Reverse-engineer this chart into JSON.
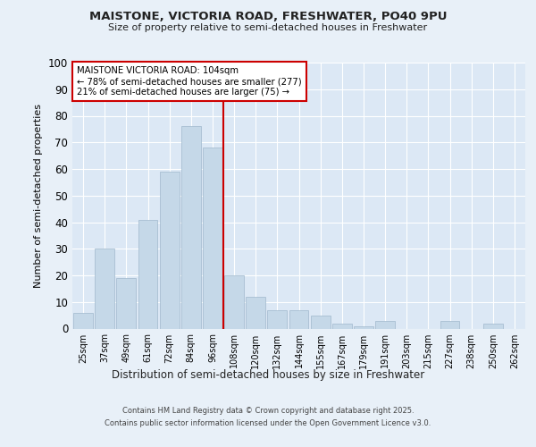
{
  "title1": "MAISTONE, VICTORIA ROAD, FRESHWATER, PO40 9PU",
  "title2": "Size of property relative to semi-detached houses in Freshwater",
  "xlabel": "Distribution of semi-detached houses by size in Freshwater",
  "ylabel": "Number of semi-detached properties",
  "categories": [
    "25sqm",
    "37sqm",
    "49sqm",
    "61sqm",
    "72sqm",
    "84sqm",
    "96sqm",
    "108sqm",
    "120sqm",
    "132sqm",
    "144sqm",
    "155sqm",
    "167sqm",
    "179sqm",
    "191sqm",
    "203sqm",
    "215sqm",
    "227sqm",
    "238sqm",
    "250sqm",
    "262sqm"
  ],
  "values": [
    6,
    30,
    19,
    41,
    59,
    76,
    68,
    20,
    12,
    7,
    7,
    5,
    2,
    1,
    3,
    0,
    0,
    3,
    0,
    2,
    0
  ],
  "bar_color": "#c5d8e8",
  "bar_edge_color": "#a0b8cc",
  "vline_x_index": 7,
  "vline_color": "#cc0000",
  "annotation_title": "MAISTONE VICTORIA ROAD: 104sqm",
  "annotation_line1": "← 78% of semi-detached houses are smaller (277)",
  "annotation_line2": "21% of semi-detached houses are larger (75) →",
  "annotation_box_color": "#ffffff",
  "annotation_box_edge": "#cc0000",
  "footer1": "Contains HM Land Registry data © Crown copyright and database right 2025.",
  "footer2": "Contains public sector information licensed under the Open Government Licence v3.0.",
  "background_color": "#e8f0f8",
  "plot_bg_color": "#dce8f5",
  "ylim": [
    0,
    100
  ],
  "yticks": [
    0,
    10,
    20,
    30,
    40,
    50,
    60,
    70,
    80,
    90,
    100
  ]
}
